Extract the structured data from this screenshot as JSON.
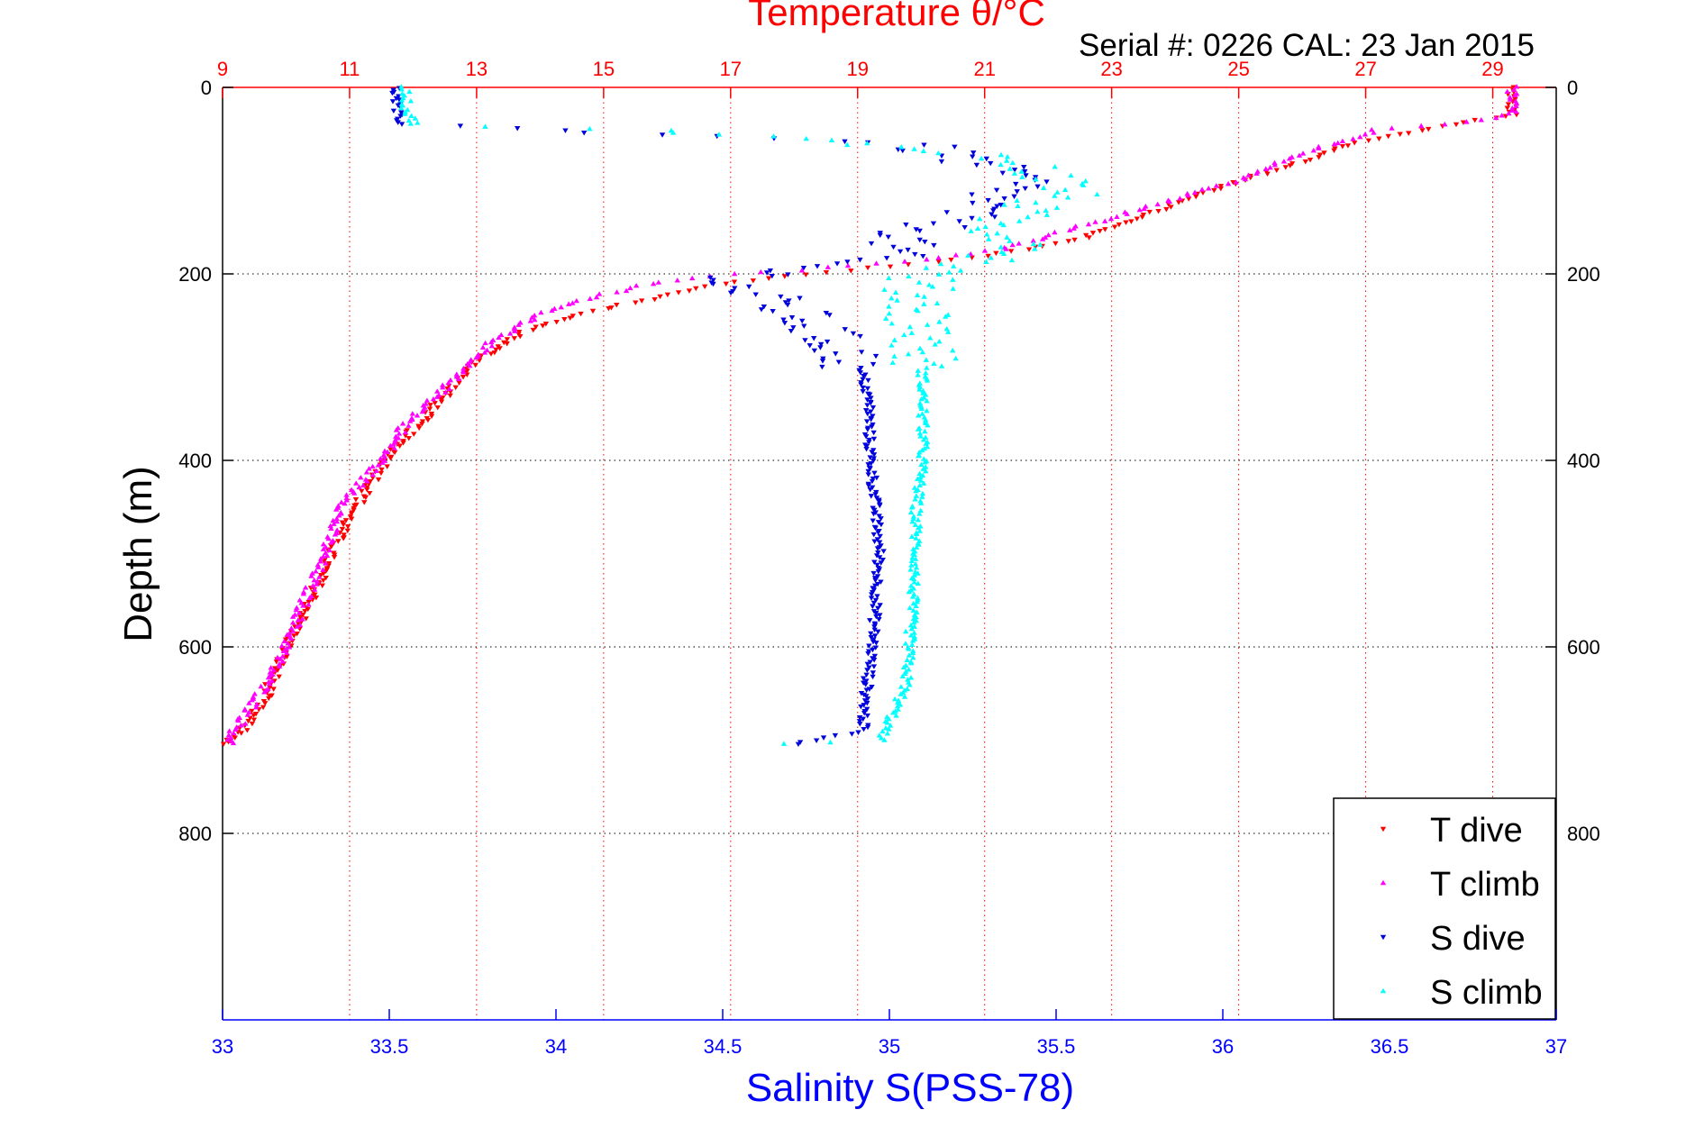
{
  "chart_data": {
    "type": "scatter",
    "title": "Temperature θ/°C",
    "subtitle": "Serial #: 0226  CAL: 23 Jan 2015",
    "xlabel": "Salinity S(PSS-78)",
    "ylabel": "Depth (m)",
    "x_bottom": {
      "label": "Salinity S(PSS-78)",
      "range": [
        33,
        37
      ],
      "ticks": [
        "33",
        "33.5",
        "34",
        "34.5",
        "35",
        "35.5",
        "36",
        "36.5",
        "37"
      ],
      "tick_values": [
        33,
        33.5,
        34,
        34.5,
        35,
        35.5,
        36,
        36.5,
        37
      ],
      "color": "#0000ff"
    },
    "x_top": {
      "label": "Temperature θ/°C",
      "range": [
        9,
        30
      ],
      "ticks": [
        "9",
        "11",
        "13",
        "15",
        "17",
        "19",
        "21",
        "23",
        "25",
        "27",
        "29"
      ],
      "tick_values": [
        9,
        11,
        13,
        15,
        17,
        19,
        21,
        23,
        25,
        27,
        29
      ],
      "color": "#ff0000"
    },
    "y": {
      "label": "Depth (m)",
      "range": [
        0,
        1000
      ],
      "reversed": true,
      "ticks": [
        "0",
        "200",
        "400",
        "600",
        "800"
      ],
      "tick_values": [
        0,
        200,
        400,
        600,
        800
      ]
    },
    "grid": true,
    "legend_position": "bottom-right",
    "series": [
      {
        "name": "T dive",
        "axis": "temperature",
        "marker": "down-triangle",
        "color": "#ff0000",
        "profile": [
          [
            0,
            29.3
          ],
          [
            30,
            29.3
          ],
          [
            40,
            28.3
          ],
          [
            60,
            26.8
          ],
          [
            80,
            26.0
          ],
          [
            100,
            25.0
          ],
          [
            120,
            24.2
          ],
          [
            140,
            23.4
          ],
          [
            160,
            22.6
          ],
          [
            175,
            21.6
          ],
          [
            185,
            20.5
          ],
          [
            195,
            19.0
          ],
          [
            205,
            17.5
          ],
          [
            215,
            16.5
          ],
          [
            230,
            15.5
          ],
          [
            245,
            14.5
          ],
          [
            260,
            13.8
          ],
          [
            280,
            13.3
          ],
          [
            300,
            12.9
          ],
          [
            330,
            12.5
          ],
          [
            360,
            12.1
          ],
          [
            380,
            11.8
          ],
          [
            400,
            11.6
          ],
          [
            430,
            11.3
          ],
          [
            460,
            11.0
          ],
          [
            500,
            10.7
          ],
          [
            550,
            10.4
          ],
          [
            600,
            10.0
          ],
          [
            650,
            9.7
          ],
          [
            690,
            9.3
          ],
          [
            705,
            9.05
          ]
        ]
      },
      {
        "name": "T climb",
        "axis": "temperature",
        "marker": "up-triangle",
        "color": "#ff00ff",
        "profile": [
          [
            0,
            29.3
          ],
          [
            30,
            29.3
          ],
          [
            38,
            28.5
          ],
          [
            45,
            27.2
          ],
          [
            60,
            26.5
          ],
          [
            80,
            25.7
          ],
          [
            100,
            25.0
          ],
          [
            120,
            24.0
          ],
          [
            140,
            23.0
          ],
          [
            160,
            22.0
          ],
          [
            175,
            21.2
          ],
          [
            185,
            20.0
          ],
          [
            195,
            18.3
          ],
          [
            200,
            17.0
          ],
          [
            210,
            15.8
          ],
          [
            225,
            14.8
          ],
          [
            240,
            14.1
          ],
          [
            260,
            13.6
          ],
          [
            280,
            13.1
          ],
          [
            300,
            12.8
          ],
          [
            330,
            12.4
          ],
          [
            360,
            11.9
          ],
          [
            400,
            11.5
          ],
          [
            430,
            11.1
          ],
          [
            460,
            10.8
          ],
          [
            500,
            10.6
          ],
          [
            550,
            10.3
          ],
          [
            600,
            10.0
          ],
          [
            650,
            9.6
          ],
          [
            690,
            9.2
          ],
          [
            705,
            9.1
          ]
        ]
      },
      {
        "name": "S dive",
        "axis": "salinity",
        "marker": "down-triangle",
        "color": "#0000dd",
        "profile": [
          [
            0,
            33.52
          ],
          [
            25,
            33.52
          ],
          [
            40,
            33.54
          ],
          [
            60,
            35.05
          ],
          [
            80,
            35.25
          ],
          [
            100,
            35.4
          ],
          [
            120,
            35.3
          ],
          [
            140,
            35.2
          ],
          [
            160,
            35.05
          ],
          [
            180,
            35.0
          ],
          [
            195,
            34.7
          ],
          [
            210,
            34.5
          ],
          [
            230,
            34.65
          ],
          [
            250,
            34.75
          ],
          [
            270,
            34.82
          ],
          [
            290,
            34.88
          ],
          [
            310,
            34.92
          ],
          [
            340,
            34.94
          ],
          [
            380,
            34.94
          ],
          [
            420,
            34.95
          ],
          [
            460,
            34.96
          ],
          [
            500,
            34.97
          ],
          [
            550,
            34.96
          ],
          [
            600,
            34.95
          ],
          [
            650,
            34.93
          ],
          [
            690,
            34.92
          ],
          [
            705,
            34.7
          ]
        ]
      },
      {
        "name": "S climb",
        "axis": "salinity",
        "marker": "up-triangle",
        "color": "#00ffff",
        "profile": [
          [
            0,
            33.55
          ],
          [
            25,
            33.55
          ],
          [
            40,
            33.58
          ],
          [
            45,
            34.2
          ],
          [
            55,
            34.7
          ],
          [
            70,
            35.25
          ],
          [
            90,
            35.45
          ],
          [
            110,
            35.55
          ],
          [
            130,
            35.4
          ],
          [
            150,
            35.3
          ],
          [
            170,
            35.45
          ],
          [
            185,
            35.3
          ],
          [
            200,
            35.1
          ],
          [
            220,
            35.08
          ],
          [
            250,
            35.1
          ],
          [
            280,
            35.1
          ],
          [
            310,
            35.1
          ],
          [
            350,
            35.1
          ],
          [
            400,
            35.1
          ],
          [
            450,
            35.08
          ],
          [
            500,
            35.08
          ],
          [
            550,
            35.07
          ],
          [
            600,
            35.06
          ],
          [
            640,
            35.05
          ],
          [
            680,
            35.0
          ],
          [
            700,
            34.97
          ],
          [
            705,
            34.6
          ]
        ]
      }
    ],
    "legend": [
      "T dive",
      "T climb",
      "S dive",
      "S climb"
    ]
  }
}
